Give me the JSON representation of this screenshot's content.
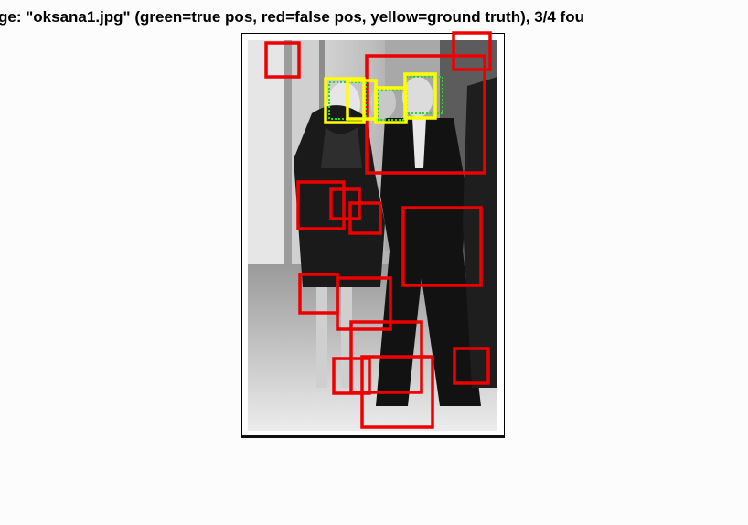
{
  "title": "ge: \"oksana1.jpg\" (green=true pos, red=false pos, yellow=ground truth), 3/4 fou",
  "colors": {
    "true_positive": "#22dd22",
    "false_positive": "#ee0000",
    "ground_truth": "#ffff00"
  },
  "image": {
    "description_icon": "photo-icon"
  }
}
